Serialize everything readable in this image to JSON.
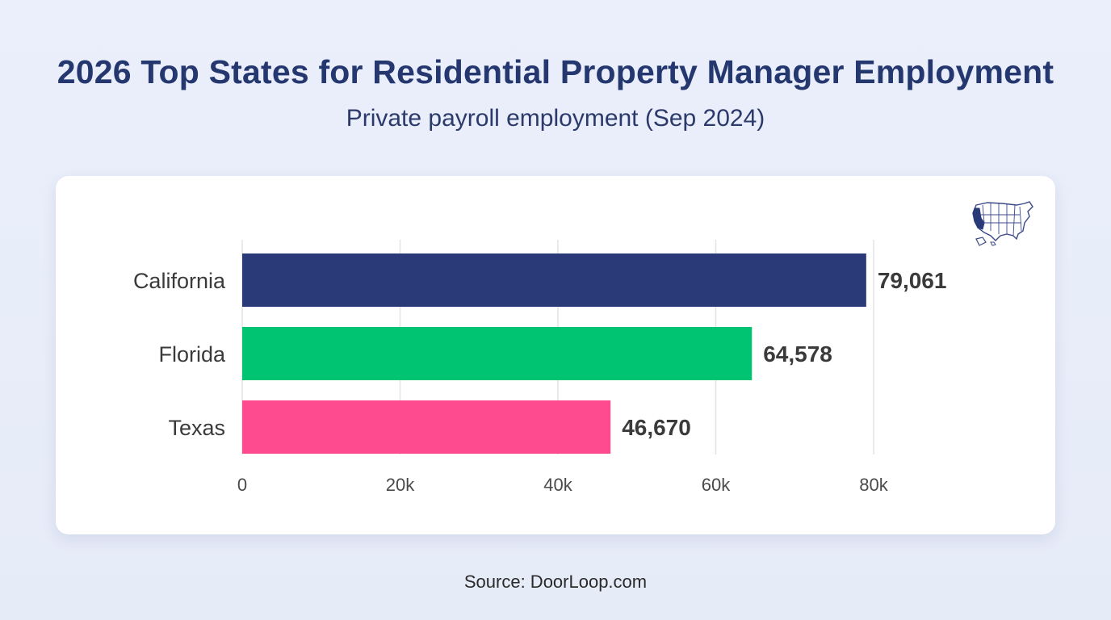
{
  "header": {
    "title": "2026 Top States for Residential Property Manager Employment",
    "subtitle": "Private payroll employment (Sep 2024)"
  },
  "footer": {
    "source": "Source: DoorLoop.com"
  },
  "icons": {
    "map": "usa-map-icon"
  },
  "chart_data": {
    "type": "bar",
    "orientation": "horizontal",
    "categories": [
      "California",
      "Florida",
      "Texas"
    ],
    "values": [
      79061,
      64578,
      46670
    ],
    "value_labels": [
      "79,061",
      "64,578",
      "46,670"
    ],
    "colors": [
      "#2a3a78",
      "#00c472",
      "#fe4a8f"
    ],
    "x_ticks": [
      0,
      20000,
      40000,
      60000,
      80000
    ],
    "x_tick_labels": [
      "0",
      "20k",
      "40k",
      "60k",
      "80k"
    ],
    "xlim": [
      0,
      80000
    ],
    "grid": true,
    "legend": "none"
  }
}
